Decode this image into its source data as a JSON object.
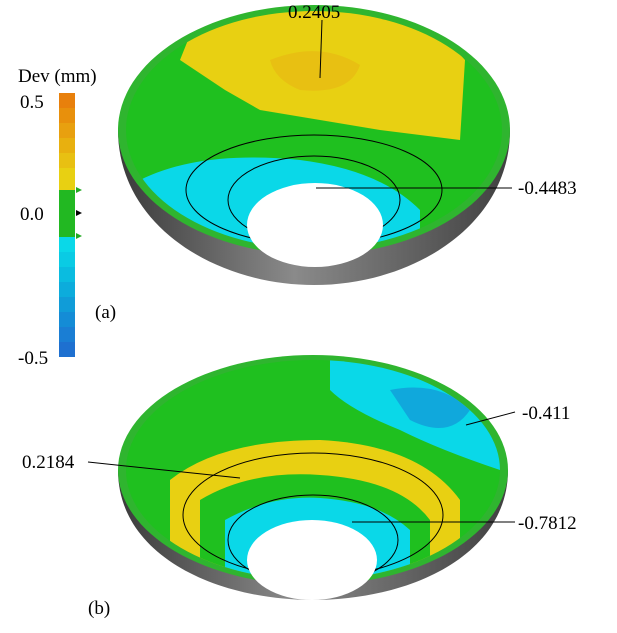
{
  "colorbar": {
    "title": "Dev (mm)",
    "ticks": [
      "0.5",
      "0.0",
      "-0.5"
    ]
  },
  "panels": [
    {
      "label": "(a)",
      "annotations": [
        "0.2405",
        "-0.4483"
      ]
    },
    {
      "label": "(b)",
      "annotations": [
        "-0.411",
        "0.2184",
        "-0.7812"
      ]
    }
  ]
}
